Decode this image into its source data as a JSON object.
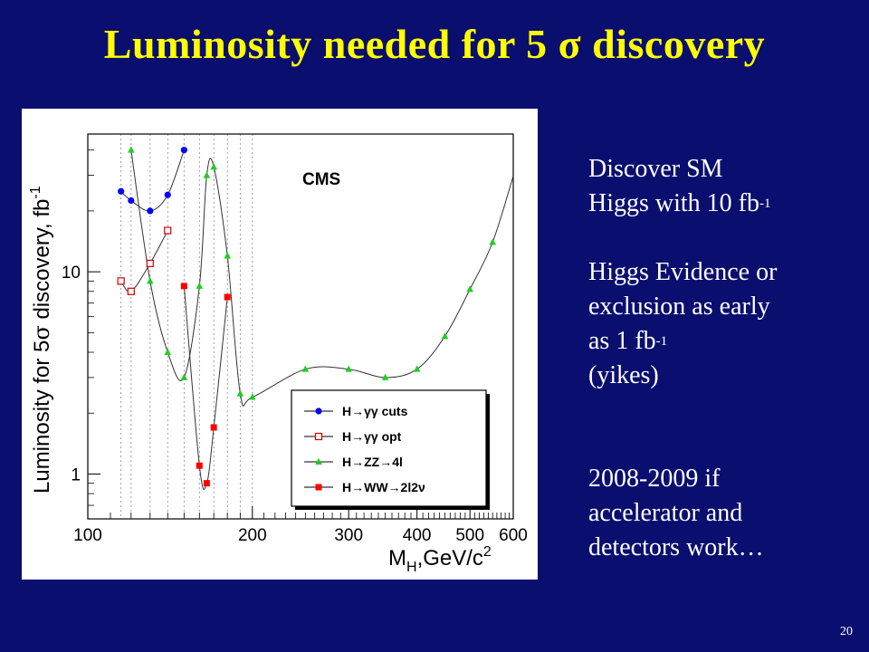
{
  "title": "Luminosity needed for 5 σ discovery",
  "notes": {
    "discover_line1": "Discover SM",
    "discover_line2_pre": "Higgs with 10 fb",
    "discover_sup": "-1",
    "evidence_line1": "Higgs Evidence or",
    "evidence_line2": "exclusion as early",
    "evidence_line3_pre": "as 1 fb",
    "evidence_sup": "-1",
    "evidence_line4": "(yikes)",
    "timeline_line1": "2008-2009 if",
    "timeline_line2": "accelerator and",
    "timeline_line3": "detectors work…"
  },
  "page_number": "20",
  "colors": {
    "background": "#0a0e6e",
    "title": "#ffff00",
    "hgg_cuts": "#0000ff",
    "hgg_opt": "#d00000",
    "hzz": "#22cc22",
    "hww": "#ff0000"
  },
  "chart_data": {
    "type": "scatter",
    "label": "CMS",
    "xlabel_main": "M",
    "xlabel_sub": "H",
    "xlabel_rest": ",GeV/c",
    "xlabel_sup": "2",
    "ylabel_pre": "Luminosity for 5",
    "ylabel_sigma": "σ",
    "ylabel_post": " discovery, fb",
    "ylabel_sup": "-1",
    "x_scale": "log",
    "y_scale": "log",
    "xlim": [
      100,
      600
    ],
    "ylim": [
      0.6,
      48
    ],
    "x_ticks": [
      100,
      200,
      300,
      400,
      500,
      600
    ],
    "x_tick_labels": [
      "100",
      "200",
      "300",
      "400",
      "500",
      "600"
    ],
    "y_ticks": [
      1,
      10
    ],
    "y_tick_labels": [
      "1",
      "10"
    ],
    "vertical_dotted_lines": [
      115,
      120,
      130,
      140,
      150,
      160,
      170,
      180,
      190,
      200
    ],
    "legend_position": "bottom-right",
    "series": [
      {
        "name": "H→γγ cuts",
        "marker": "filled-circle",
        "points": [
          [
            115,
            25
          ],
          [
            120,
            22.5
          ],
          [
            130,
            20
          ],
          [
            140,
            24
          ],
          [
            150,
            40
          ]
        ]
      },
      {
        "name": "H→γγ opt",
        "marker": "open-square",
        "points": [
          [
            115,
            9
          ],
          [
            120,
            8
          ],
          [
            130,
            11
          ],
          [
            140,
            16
          ]
        ]
      },
      {
        "name": "H→ZZ→4l",
        "marker": "filled-triangle",
        "points": [
          [
            120,
            40
          ],
          [
            130,
            9
          ],
          [
            140,
            4
          ],
          [
            150,
            3
          ],
          [
            160,
            8.5
          ],
          [
            165,
            30
          ],
          [
            170,
            33
          ],
          [
            180,
            12
          ],
          [
            190,
            2.5
          ],
          [
            200,
            2.4
          ],
          [
            250,
            3.3
          ],
          [
            300,
            3.3
          ],
          [
            350,
            3
          ],
          [
            400,
            3.3
          ],
          [
            450,
            4.8
          ],
          [
            500,
            8.2
          ],
          [
            550,
            14
          ]
        ]
      },
      {
        "name": "H→WW→2l2ν",
        "marker": "filled-square",
        "points": [
          [
            150,
            8.5
          ],
          [
            160,
            1.1
          ],
          [
            165,
            0.9
          ],
          [
            170,
            1.7
          ],
          [
            180,
            7.5
          ]
        ]
      }
    ]
  }
}
